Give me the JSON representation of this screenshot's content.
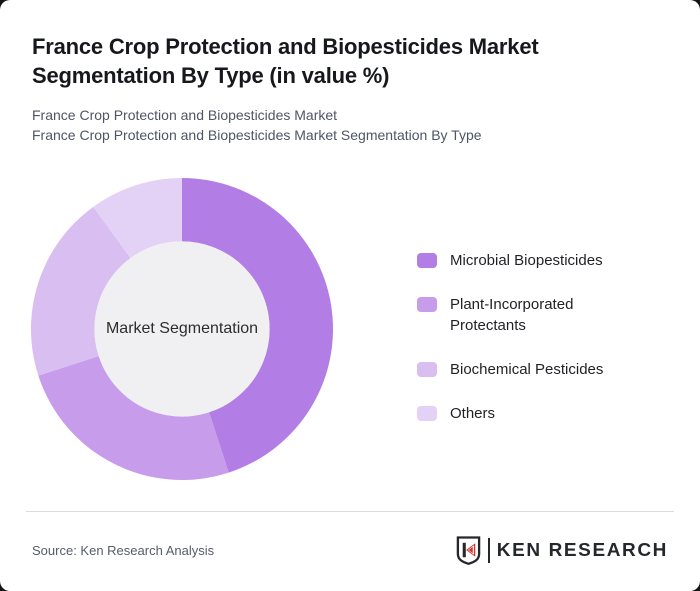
{
  "header": {
    "title_line1": "France Crop Protection and Biopesticides Market",
    "title_line2": "Segmentation By Type (in value %)",
    "subtitle_line1": "France Crop Protection and Biopesticides Market",
    "subtitle_line2": "France Crop Protection and Biopesticides Market Segmentation By Type"
  },
  "chart_data": {
    "type": "pie",
    "variant": "donut",
    "title": "France Crop Protection and Biopesticides Market Segmentation By Type (in value %)",
    "center_label": "Market Segmentation",
    "categories": [
      "Microbial Biopesticides",
      "Plant-Incorporated Protectants",
      "Biochemical Pesticides",
      "Others"
    ],
    "values": [
      45,
      25,
      20,
      10
    ],
    "unit": "% of value",
    "colors": [
      "#b27ee6",
      "#c69ceb",
      "#d9bef1",
      "#e4d1f6"
    ],
    "inner_circle_color": "#f0eff1",
    "start_angle_deg": 0,
    "direction": "clockwise",
    "inner_radius_ratio": 0.58,
    "legend_position": "right",
    "data_labels_shown": false
  },
  "footer": {
    "source": "Source: Ken Research Analysis",
    "logo": {
      "text": "KEN RESEARCH",
      "mark_letter": "K",
      "dark_color": "#24272c",
      "accent_color": "#cf3531"
    }
  }
}
